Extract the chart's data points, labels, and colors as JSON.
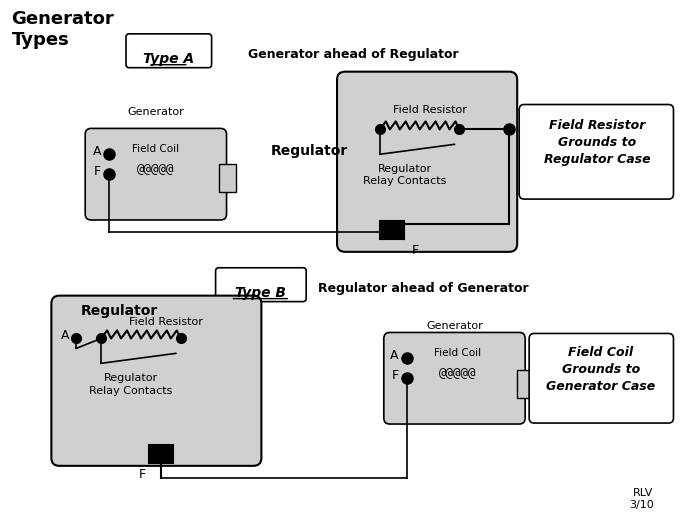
{
  "title": "Generator\nTypes",
  "bg_color": "#ffffff",
  "typeA_label": "Type A",
  "typeB_label": "Type B",
  "typeA_subtitle": "Generator ahead of Regulator",
  "typeB_subtitle": "Regulator ahead of Generator",
  "regulator_label": "Regulator",
  "generator_label": "Generator",
  "field_resistor_label": "Field Resistor",
  "relay_contacts_label": "Regulator\nRelay Contacts",
  "field_coil_label": "Field Coil",
  "field_resistor_grounds": "Field Resistor\nGrounds to\nRegulator Case",
  "field_coil_grounds": "Field Coil\nGrounds to\nGenerator Case",
  "coil_symbol": "@@@@@",
  "resistor_symbol": "/\\/\\/\\/\\",
  "terminal_A": "A",
  "terminal_F": "F",
  "rlv_label": "RLV\n3/10",
  "gray": "#d0d0d0",
  "light_gray": "#e8e8e8",
  "black": "#000000",
  "white": "#ffffff"
}
